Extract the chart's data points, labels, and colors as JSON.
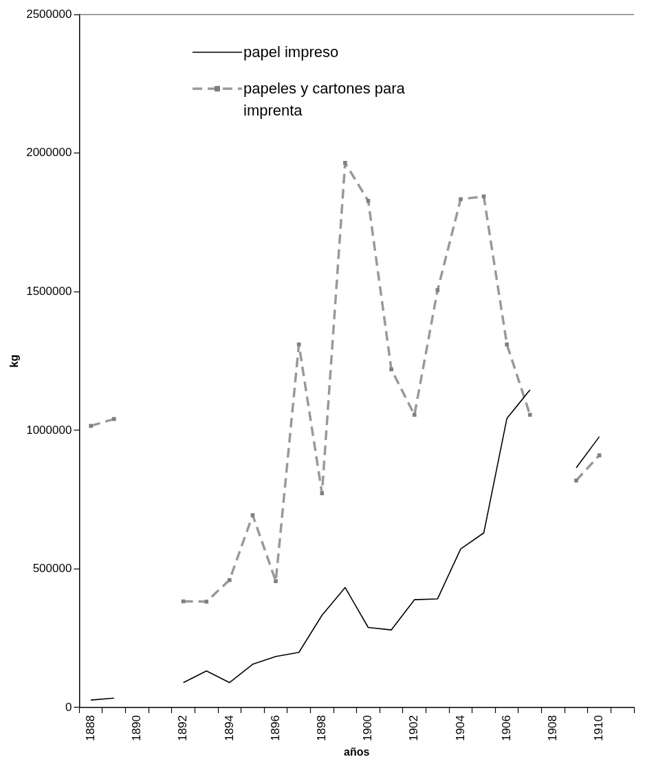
{
  "chart_data": {
    "type": "line",
    "xlabel": "años",
    "ylabel": "kg",
    "categories": [
      "1888",
      null,
      "1890",
      null,
      "1892",
      null,
      "1894",
      null,
      "1896",
      null,
      "1898",
      null,
      "1900",
      null,
      "1902",
      null,
      "1904",
      null,
      "1906",
      null,
      "1908",
      null,
      "1910",
      null
    ],
    "series": [
      {
        "name": "papel impreso",
        "color": "#000000",
        "marker": "none",
        "line_style": "solid",
        "values": [
          27000,
          34000,
          null,
          null,
          90000,
          132000,
          90000,
          156000,
          184000,
          199000,
          333000,
          433000,
          289000,
          280000,
          389000,
          392000,
          572000,
          630000,
          1043000,
          1146000,
          null,
          865000,
          977000,
          null
        ]
      },
      {
        "name": "papeles y cartones para imprenta",
        "color": "#999999",
        "marker": "square",
        "line_style": "dashed",
        "values": [
          1016000,
          1041000,
          null,
          null,
          383000,
          382000,
          460000,
          694000,
          456000,
          1310000,
          773000,
          1965000,
          1828000,
          1220000,
          1056000,
          1506000,
          1834000,
          1844000,
          1310000,
          1056000,
          null,
          819000,
          910000,
          null
        ]
      }
    ],
    "ylim": [
      0,
      2500000
    ],
    "yticks": [
      0,
      500000,
      1000000,
      1500000,
      2000000,
      2500000
    ],
    "grid": false,
    "legend": "top"
  }
}
